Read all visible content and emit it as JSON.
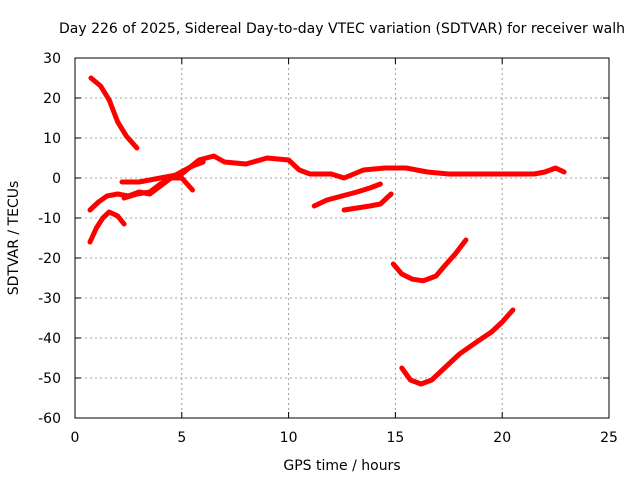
{
  "chart_data": {
    "type": "line",
    "title": "Day 226 of 2025, Sidereal Day-to-day VTEC variation (SDTVAR) for receiver walh",
    "xlabel": "GPS time / hours",
    "ylabel": "SDTVAR / TECUs",
    "xlim": [
      0,
      25
    ],
    "ylim": [
      -60,
      30
    ],
    "xticks": [
      0,
      5,
      10,
      15,
      20,
      25
    ],
    "yticks": [
      -60,
      -50,
      -40,
      -30,
      -20,
      -10,
      0,
      10,
      20,
      30
    ],
    "grid": true,
    "color": "#ff0000",
    "series": [
      {
        "name": "pass-1",
        "x": [
          0.75,
          1.2,
          1.6,
          2.0,
          2.4,
          2.9
        ],
        "y": [
          25,
          23,
          19.5,
          14,
          10.5,
          7.5
        ]
      },
      {
        "name": "pass-2",
        "x": [
          0.7,
          1.0,
          1.3,
          1.6,
          2.0,
          2.3
        ],
        "y": [
          -16,
          -12.5,
          -10,
          -8.5,
          -9.5,
          -11.5
        ]
      },
      {
        "name": "pass-3",
        "x": [
          0.7,
          1.1,
          1.5,
          2.0,
          2.5,
          3.0,
          3.5,
          4.0,
          4.5,
          5.0,
          5.5
        ],
        "y": [
          -8,
          -6,
          -4.5,
          -4,
          -4.5,
          -3.5,
          -4,
          -2,
          0,
          0,
          -3
        ]
      },
      {
        "name": "pass-4",
        "x": [
          2.2,
          3.0,
          4.0,
          5.0,
          5.8,
          6.5,
          7.0,
          8.0,
          9.0,
          10.0,
          10.5,
          11.0,
          12.0,
          12.6,
          13.5,
          14.5,
          15.5,
          16.5,
          17.5,
          18.5,
          19.5,
          20.5,
          21.5,
          22.0,
          22.5,
          22.9
        ],
        "y": [
          -1,
          -1,
          0,
          1,
          4.5,
          5.5,
          4,
          3.5,
          5,
          4.5,
          2,
          1,
          1,
          0,
          2,
          2.5,
          2.5,
          1.5,
          1,
          1,
          1,
          1,
          1,
          1.5,
          2.5,
          1.5
        ]
      },
      {
        "name": "pass-5",
        "x": [
          2.3,
          2.9,
          3.5,
          4.0,
          4.8,
          5.5,
          6.0
        ],
        "y": [
          -5,
          -4,
          -3.5,
          -1.5,
          1,
          3,
          4
        ]
      },
      {
        "name": "pass-6",
        "x": [
          11.2,
          11.8,
          12.5,
          13.2,
          13.8,
          14.3
        ],
        "y": [
          -7,
          -5.5,
          -4.5,
          -3.5,
          -2.5,
          -1.5
        ]
      },
      {
        "name": "pass-7",
        "x": [
          12.6,
          13.2,
          13.8,
          14.3,
          14.8
        ],
        "y": [
          -8,
          -7.5,
          -7,
          -6.5,
          -4
        ]
      },
      {
        "name": "pass-8",
        "x": [
          14.9,
          15.3,
          15.8,
          16.3,
          16.9,
          17.3,
          17.8,
          18.3
        ],
        "y": [
          -21.5,
          -24,
          -25.3,
          -25.7,
          -24.5,
          -22,
          -19,
          -15.5
        ]
      },
      {
        "name": "pass-9",
        "x": [
          15.3,
          15.7,
          16.2,
          16.7,
          17.3,
          18.0,
          18.8,
          19.5,
          20.0,
          20.5
        ],
        "y": [
          -47.5,
          -50.5,
          -51.5,
          -50.5,
          -47.5,
          -44,
          -41,
          -38.5,
          -36,
          -33
        ]
      }
    ]
  }
}
